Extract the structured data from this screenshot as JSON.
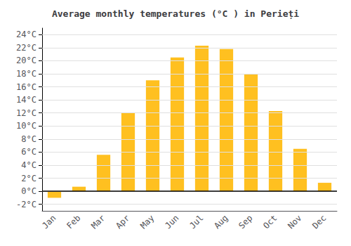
{
  "chart_data": {
    "type": "bar",
    "title": "Average monthly temperatures (°C ) in Perieți",
    "categories": [
      "Jan",
      "Feb",
      "Mar",
      "Apr",
      "May",
      "Jun",
      "Jul",
      "Aug",
      "Sep",
      "Oct",
      "Nov",
      "Dec"
    ],
    "values": [
      -1.0,
      0.7,
      5.6,
      12.0,
      17.0,
      20.5,
      22.3,
      21.8,
      18.0,
      12.3,
      6.5,
      1.3
    ],
    "color": "#FFC020",
    "ylim": [
      -3,
      25
    ],
    "yticks": [
      {
        "value": -2,
        "label": "-2°C"
      },
      {
        "value": 0,
        "label": "0°C"
      },
      {
        "value": 2,
        "label": "2°C"
      },
      {
        "value": 4,
        "label": "4°C"
      },
      {
        "value": 6,
        "label": "6°C"
      },
      {
        "value": 8,
        "label": "8°C"
      },
      {
        "value": 10,
        "label": "10°C"
      },
      {
        "value": 12,
        "label": "12°C"
      },
      {
        "value": 14,
        "label": "14°C"
      },
      {
        "value": 16,
        "label": "16°C"
      },
      {
        "value": 18,
        "label": "18°C"
      },
      {
        "value": 20,
        "label": "20°C"
      },
      {
        "value": 22,
        "label": "22°C"
      },
      {
        "value": 24,
        "label": "24°C"
      }
    ],
    "grid": true
  }
}
